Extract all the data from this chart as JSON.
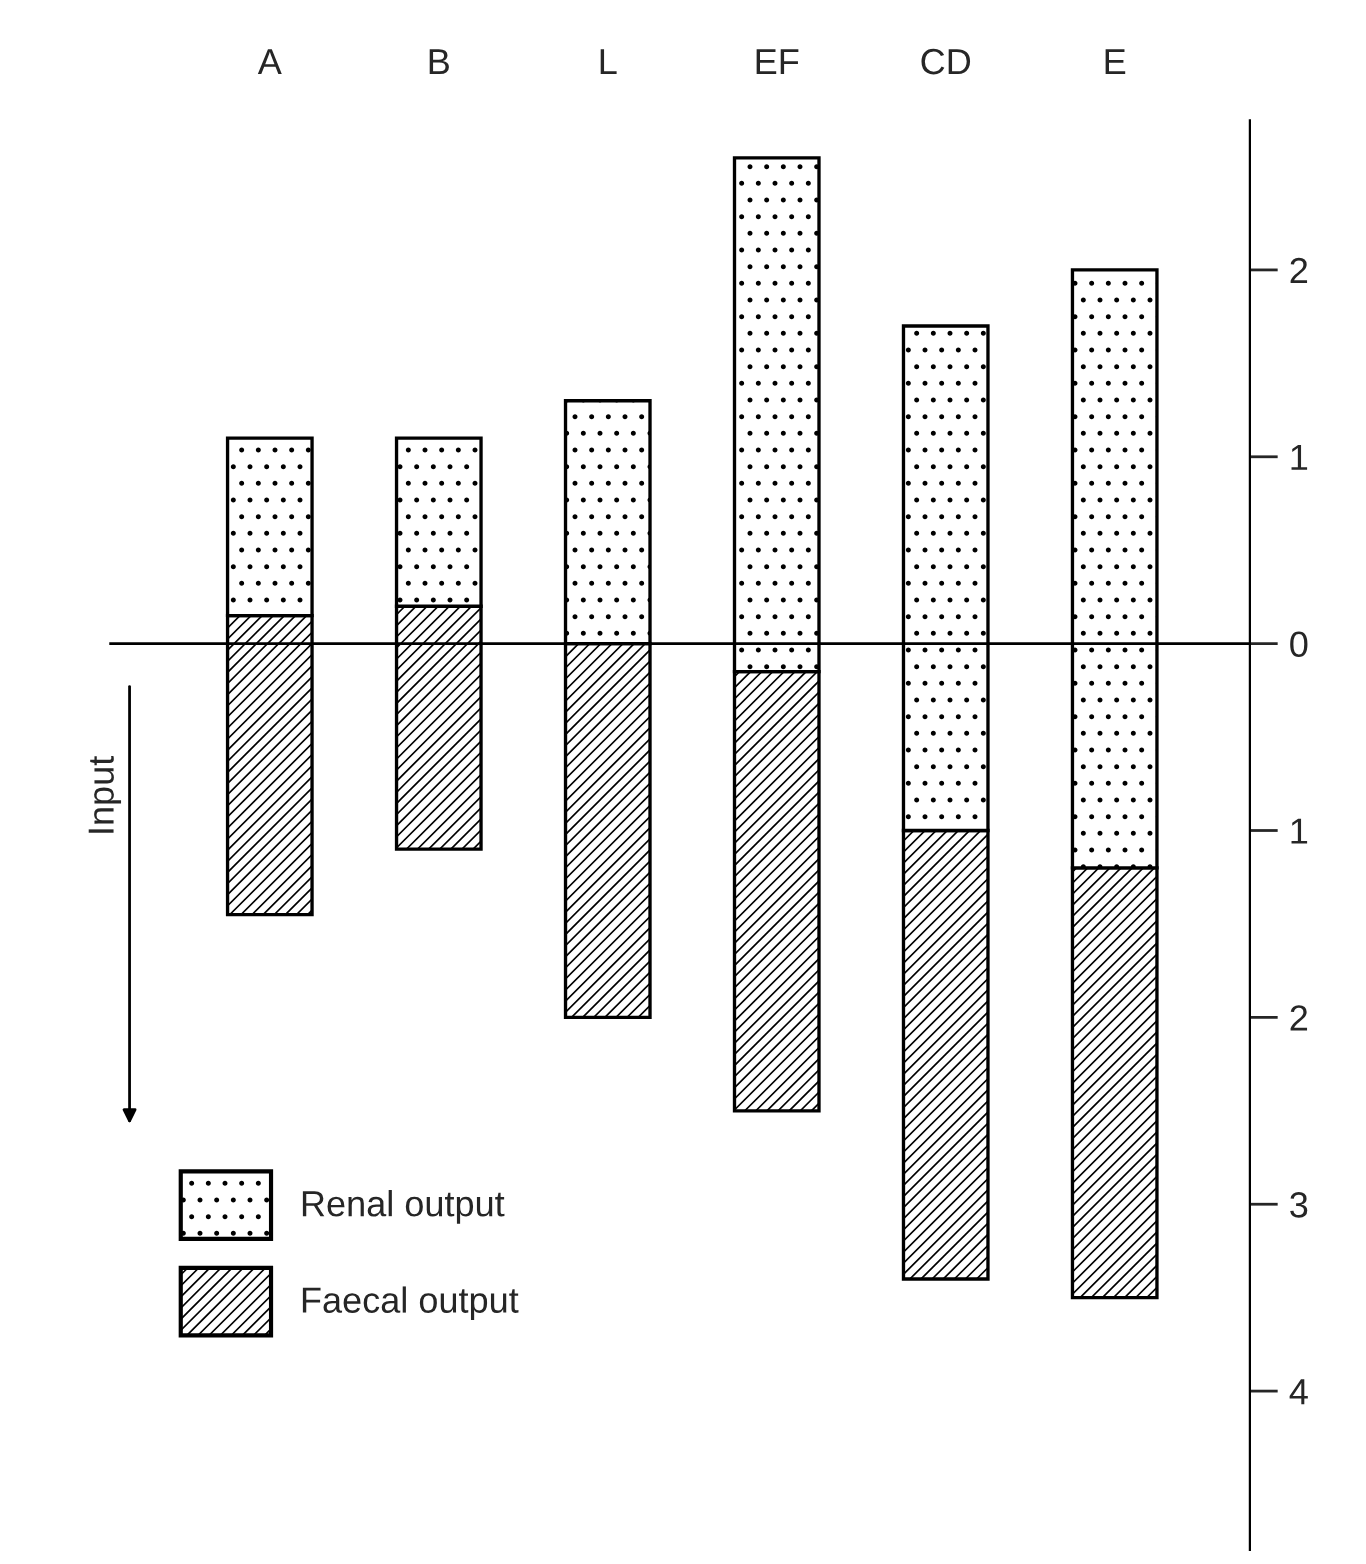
{
  "chart_data": {
    "type": "bar",
    "categories": [
      "A",
      "B",
      "L",
      "EF",
      "CD",
      "E"
    ],
    "series": [
      {
        "name": "Faecal output",
        "color": "#000000",
        "base": [
          -1.45,
          -1.1,
          -2.0,
          -2.5,
          -3.4,
          -3.5
        ],
        "values": [
          1.6,
          1.3,
          2.0,
          2.35,
          2.4,
          2.3
        ]
      },
      {
        "name": "Renal output",
        "color": "#000000",
        "base": [
          0.15,
          0.2,
          0.0,
          -0.15,
          -1.0,
          -1.2
        ],
        "values": [
          0.95,
          0.9,
          1.3,
          2.75,
          2.7,
          3.2
        ]
      }
    ],
    "ylim": [
      -4.85,
      2.8
    ],
    "yticks": [
      2,
      1,
      0,
      {
        "value": -1,
        "label": "1"
      },
      {
        "value": -2,
        "label": "2"
      },
      {
        "value": -3,
        "label": "3"
      },
      {
        "value": -4,
        "label": "4"
      }
    ],
    "ref_lines": [
      {
        "axis": "y",
        "value": 0,
        "label": null
      }
    ],
    "annotations": [
      "Input"
    ],
    "legend": "bottom left",
    "grid": false
  }
}
